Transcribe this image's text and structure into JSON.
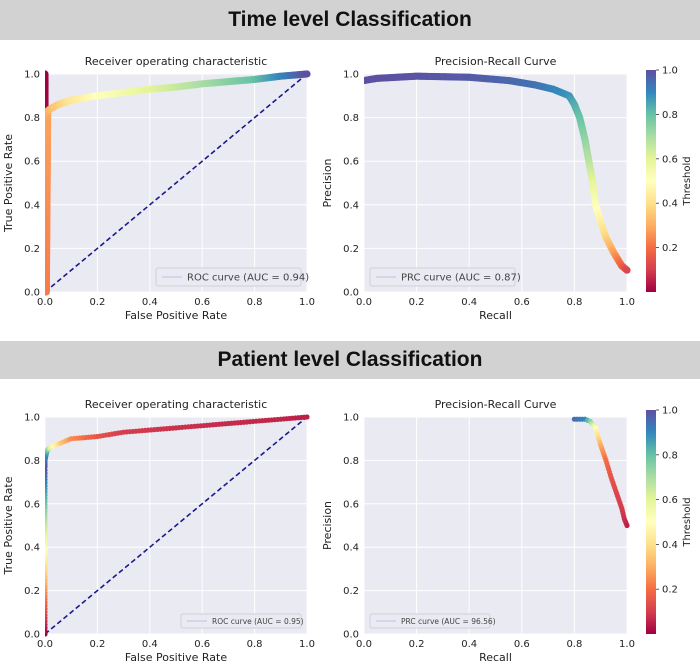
{
  "sections": {
    "top_title": "Time level Classification",
    "bottom_title": "Patient level Classification"
  },
  "colors": {
    "panel_bg": "#eaeaf2",
    "grid": "#ffffff",
    "diagonal": "#1a1a8c",
    "colormap": [
      "#9e0142",
      "#d53e4f",
      "#f46d43",
      "#fdae61",
      "#fee08b",
      "#ffffbf",
      "#e6f598",
      "#abdda4",
      "#66c2a5",
      "#3288bd",
      "#5e4fa2"
    ]
  },
  "colorbar": {
    "label": "Threshold",
    "ticks": [
      "0.2",
      "0.4",
      "0.6",
      "0.8",
      "1.0"
    ]
  },
  "chart_data": [
    {
      "id": "time-roc",
      "type": "scatter",
      "title": "Receiver operating characteristic",
      "xlabel": "False Positive Rate",
      "ylabel": "True Positive Rate",
      "xlim": [
        0,
        1
      ],
      "ylim": [
        0,
        1
      ],
      "xticks": [
        "0.0",
        "0.2",
        "0.4",
        "0.6",
        "0.8",
        "1.0"
      ],
      "yticks": [
        "0.0",
        "0.2",
        "0.4",
        "0.6",
        "0.8",
        "1.0"
      ],
      "legend": "ROC curve (AUC = 0.94)",
      "legend_position": "lower-right",
      "diagonal": true,
      "style": "dense",
      "points": [
        [
          0.0,
          1.0,
          0.0
        ],
        [
          0.0,
          0.9,
          0.0
        ],
        [
          0.0,
          0.6,
          0.05
        ],
        [
          0.002,
          0.3,
          0.12
        ],
        [
          0.003,
          0.1,
          0.18
        ],
        [
          0.005,
          0.0,
          0.22
        ],
        [
          0.01,
          0.8,
          0.28
        ],
        [
          0.01,
          0.83,
          0.3
        ],
        [
          0.02,
          0.84,
          0.33
        ],
        [
          0.05,
          0.86,
          0.36
        ],
        [
          0.1,
          0.88,
          0.42
        ],
        [
          0.2,
          0.9,
          0.5
        ],
        [
          0.3,
          0.915,
          0.55
        ],
        [
          0.4,
          0.93,
          0.6
        ],
        [
          0.5,
          0.94,
          0.65
        ],
        [
          0.6,
          0.955,
          0.7
        ],
        [
          0.7,
          0.965,
          0.75
        ],
        [
          0.8,
          0.975,
          0.8
        ],
        [
          0.9,
          0.99,
          0.9
        ],
        [
          1.0,
          1.0,
          1.0
        ]
      ]
    },
    {
      "id": "time-prc",
      "type": "scatter",
      "title": "Precision-Recall Curve",
      "xlabel": "Recall",
      "ylabel": "Precision",
      "xlim": [
        0,
        1
      ],
      "ylim": [
        0,
        1
      ],
      "xticks": [
        "0.0",
        "0.2",
        "0.4",
        "0.6",
        "0.8",
        "1.0"
      ],
      "yticks": [
        "0.0",
        "0.2",
        "0.4",
        "0.6",
        "0.8",
        "1.0"
      ],
      "legend": "PRC curve (AUC = 0.87)",
      "legend_position": "lower-left",
      "diagonal": false,
      "style": "dense",
      "points": [
        [
          0.0,
          0.97,
          1.0
        ],
        [
          0.05,
          0.98,
          1.0
        ],
        [
          0.2,
          0.99,
          0.99
        ],
        [
          0.4,
          0.985,
          0.98
        ],
        [
          0.55,
          0.97,
          0.96
        ],
        [
          0.65,
          0.95,
          0.94
        ],
        [
          0.72,
          0.93,
          0.91
        ],
        [
          0.78,
          0.9,
          0.88
        ],
        [
          0.8,
          0.86,
          0.84
        ],
        [
          0.82,
          0.8,
          0.8
        ],
        [
          0.84,
          0.7,
          0.74
        ],
        [
          0.855,
          0.6,
          0.68
        ],
        [
          0.87,
          0.5,
          0.6
        ],
        [
          0.88,
          0.4,
          0.52
        ],
        [
          0.9,
          0.32,
          0.45
        ],
        [
          0.92,
          0.25,
          0.38
        ],
        [
          0.95,
          0.18,
          0.28
        ],
        [
          0.98,
          0.12,
          0.18
        ],
        [
          1.0,
          0.1,
          0.12
        ]
      ]
    },
    {
      "id": "patient-roc",
      "type": "scatter",
      "title": "Receiver operating characteristic",
      "xlabel": "False Positive Rate",
      "ylabel": "True Positive Rate",
      "xlim": [
        0,
        1
      ],
      "ylim": [
        0,
        1
      ],
      "xticks": [
        "0.0",
        "0.2",
        "0.4",
        "0.6",
        "0.8",
        "1.0"
      ],
      "yticks": [
        "0.0",
        "0.2",
        "0.4",
        "0.6",
        "0.8",
        "1.0"
      ],
      "legend": "ROC curve (AUC = 0.95)",
      "legend_position": "lower-right",
      "diagonal": true,
      "style": "dots",
      "points": [
        [
          0.0,
          0.0,
          0.0
        ],
        [
          0.0,
          0.77,
          1.0
        ],
        [
          0.0,
          0.8,
          0.95
        ],
        [
          0.005,
          0.83,
          0.88
        ],
        [
          0.01,
          0.85,
          0.75
        ],
        [
          0.02,
          0.86,
          0.6
        ],
        [
          0.04,
          0.87,
          0.45
        ],
        [
          0.06,
          0.88,
          0.35
        ],
        [
          0.1,
          0.9,
          0.25
        ],
        [
          0.2,
          0.91,
          0.15
        ],
        [
          0.3,
          0.93,
          0.1
        ],
        [
          0.5,
          0.95,
          0.08
        ],
        [
          0.7,
          0.97,
          0.07
        ],
        [
          0.9,
          0.99,
          0.06
        ],
        [
          1.0,
          1.0,
          0.05
        ]
      ]
    },
    {
      "id": "patient-prc",
      "type": "scatter",
      "title": "Precision-Recall Curve",
      "xlabel": "Recall",
      "ylabel": "Precision",
      "xlim": [
        0,
        1
      ],
      "ylim": [
        0,
        1
      ],
      "xticks": [
        "0.0",
        "0.2",
        "0.4",
        "0.6",
        "0.8",
        "1.0"
      ],
      "yticks": [
        "0.0",
        "0.2",
        "0.4",
        "0.6",
        "0.8",
        "1.0"
      ],
      "legend": "PRC curve (AUC = 96.56)",
      "legend_position": "lower-left",
      "diagonal": false,
      "style": "dots",
      "points": [
        [
          0.8,
          0.99,
          0.95
        ],
        [
          0.84,
          0.99,
          0.9
        ],
        [
          0.86,
          0.98,
          0.75
        ],
        [
          0.88,
          0.95,
          0.5
        ],
        [
          0.9,
          0.87,
          0.3
        ],
        [
          0.92,
          0.8,
          0.2
        ],
        [
          0.94,
          0.72,
          0.15
        ],
        [
          0.96,
          0.65,
          0.12
        ],
        [
          0.98,
          0.58,
          0.1
        ],
        [
          0.99,
          0.53,
          0.08
        ],
        [
          1.0,
          0.5,
          0.05
        ]
      ]
    }
  ]
}
